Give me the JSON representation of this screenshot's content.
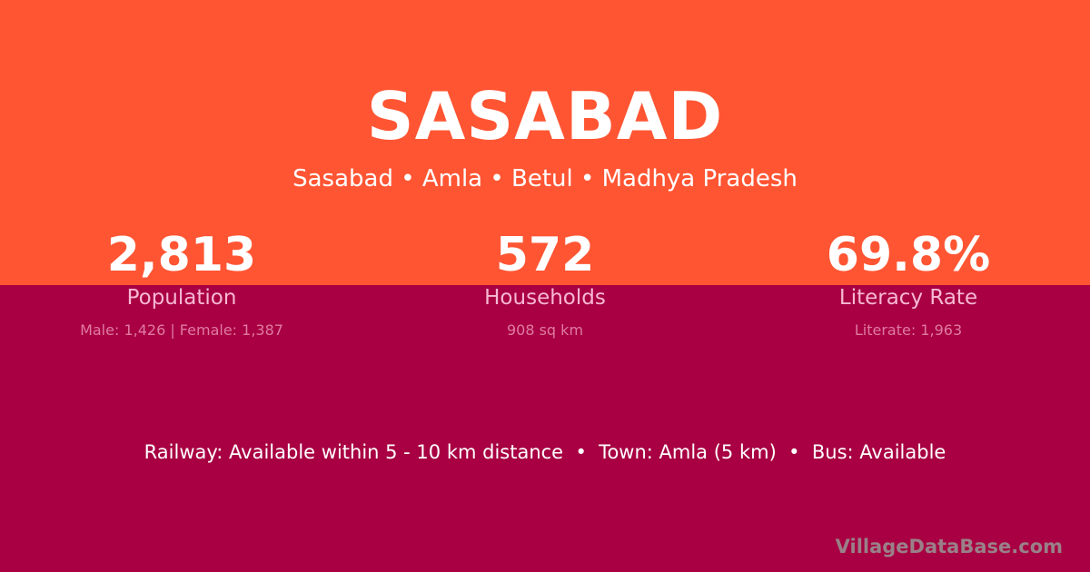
{
  "colors": {
    "top_bg": "#ff5533",
    "bottom_bg": "#a80042"
  },
  "title": "SASABAD",
  "subtitle": "Sasabad • Amla • Betul • Madhya Pradesh",
  "stats": [
    {
      "value": "2,813",
      "label": "Population",
      "sub": "Male: 1,426 | Female: 1,387"
    },
    {
      "value": "572",
      "label": "Households",
      "sub": "908 sq km"
    },
    {
      "value": "69.8%",
      "label": "Literacy Rate",
      "sub": "Literate: 1,963"
    }
  ],
  "facts": "Railway: Available within 5 - 10 km distance  •  Town: Amla (5 km)  •  Bus: Available",
  "brand": "VillageDataBase.com"
}
